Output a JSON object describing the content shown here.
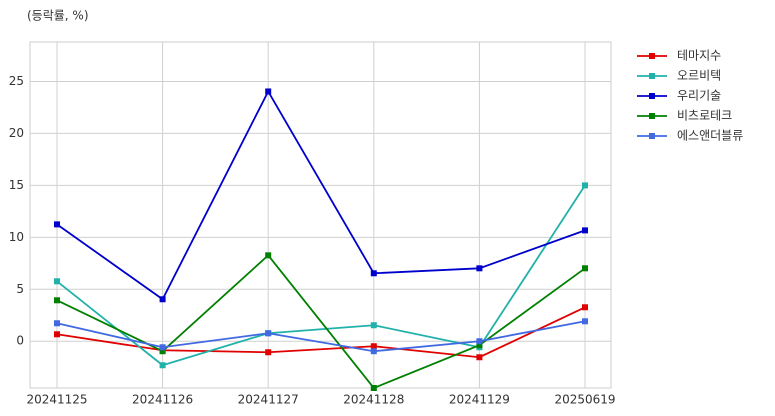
{
  "chart_data": {
    "type": "line",
    "y_label": "(등락률, %)",
    "categories": [
      "20241125",
      "20241126",
      "20241127",
      "20241128",
      "20241129",
      "20250619"
    ],
    "series": [
      {
        "name": "테마지수",
        "color": "#e00000",
        "values": [
          0.67,
          -0.87,
          -1.06,
          -0.48,
          -1.54,
          3.27
        ]
      },
      {
        "name": "오르비텍",
        "color": "#20b2aa",
        "values": [
          5.77,
          -2.31,
          0.77,
          1.54,
          -0.58,
          15.0
        ]
      },
      {
        "name": "우리기술",
        "color": "#0000cd",
        "values": [
          11.25,
          4.04,
          24.04,
          6.54,
          7.02,
          10.67
        ]
      },
      {
        "name": "비츠로테크",
        "color": "#008000",
        "values": [
          3.94,
          -0.96,
          8.27,
          -4.5,
          -0.38,
          7.02
        ]
      },
      {
        "name": "에스앤더블류",
        "color": "#4169e1",
        "values": [
          1.73,
          -0.58,
          0.77,
          -0.96,
          0.0,
          1.92
        ]
      }
    ],
    "ylim": [
      -4.5,
      28.8
    ],
    "yticks": [
      0,
      5,
      10,
      15,
      20,
      25
    ],
    "grid": true,
    "legend": "outside-right"
  }
}
